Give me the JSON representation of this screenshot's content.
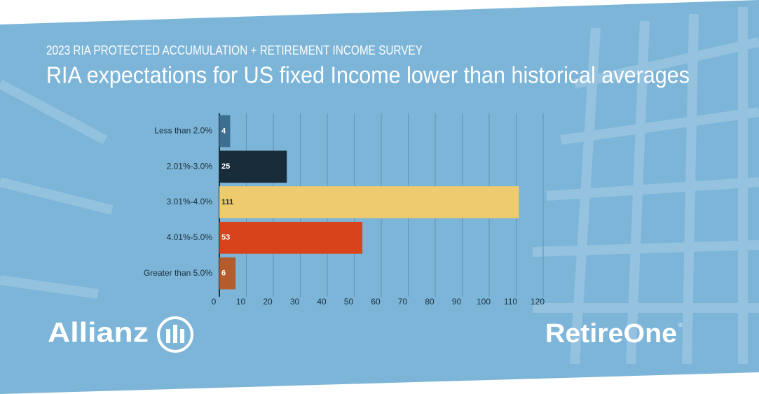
{
  "chart_data": {
    "type": "barh",
    "supertitle": "2023 RIA PROTECTED ACCUMULATION + RETIREMENT INCOME SURVEY",
    "title": "RIA expectations for US fixed Income lower than historical averages",
    "categories": [
      "Less than 2.0%",
      "2.01%-3.0%",
      "3.01%-4.0%",
      "4.01%-5.0%",
      "Greater than 5.0%"
    ],
    "values": [
      4,
      25,
      111,
      53,
      6
    ],
    "colors": [
      "#3d6f90",
      "#182c3a",
      "#eecb6c",
      "#d8431c",
      "#b65b2c"
    ],
    "xlim": [
      0,
      120
    ],
    "xticks": [
      0,
      10,
      20,
      30,
      40,
      50,
      60,
      70,
      80,
      90,
      100,
      110,
      120
    ],
    "grid": true
  },
  "logos": {
    "left": "Allianz",
    "right": "RetireOne",
    "right_mark": "®"
  }
}
